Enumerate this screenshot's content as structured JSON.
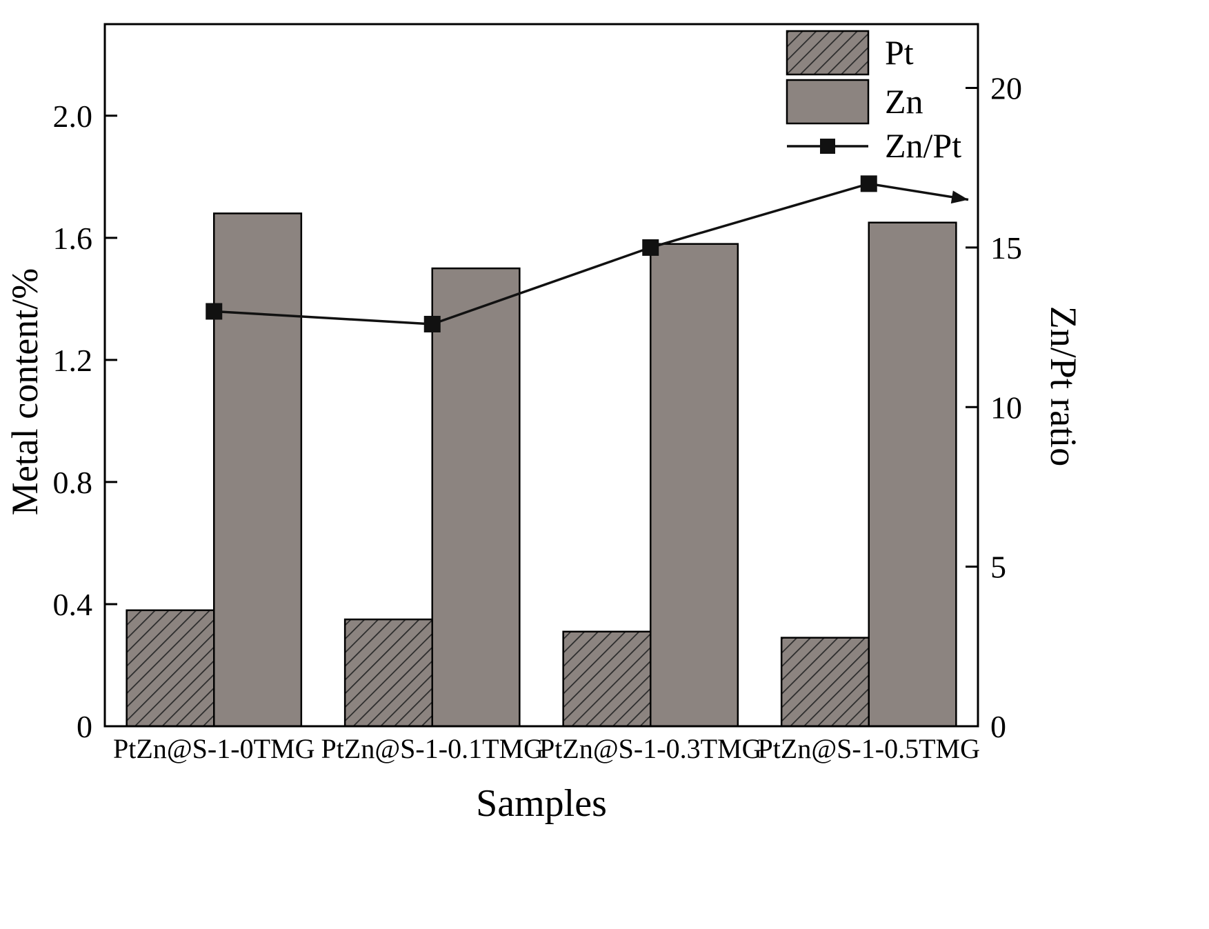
{
  "chart_data": {
    "type": "bar",
    "title": "",
    "xlabel": "Samples",
    "ylabel_left": "Metal content/%",
    "ylabel_right": "Zn/Pt ratio",
    "categories": [
      "PtZn@S-1-0TMG",
      "PtZn@S-1-0.1TMG",
      "PtZn@S-1-0.3TMG",
      "PtZn@S-1-0.5TMG"
    ],
    "bar_series": [
      {
        "name": "Pt",
        "style": "hatched",
        "axis": "left",
        "values": [
          0.38,
          0.35,
          0.31,
          0.29
        ]
      },
      {
        "name": "Zn",
        "style": "solid",
        "axis": "left",
        "values": [
          1.68,
          1.5,
          1.58,
          1.65
        ]
      }
    ],
    "line_series": {
      "name": "Zn/Pt",
      "axis": "right",
      "values": [
        13.0,
        12.6,
        15.0,
        17.0
      ],
      "arrow_end_value": 16.5
    },
    "left_axis": {
      "ticks": [
        "0",
        "0.4",
        "0.8",
        "1.2",
        "1.6",
        "2.0"
      ],
      "tick_values": [
        0,
        0.4,
        0.8,
        1.2,
        1.6,
        2.0
      ],
      "min": 0,
      "max": 2.3
    },
    "right_axis": {
      "ticks": [
        "0",
        "5",
        "10",
        "15",
        "20"
      ],
      "tick_values": [
        0,
        5,
        10,
        15,
        20
      ],
      "min": 0,
      "max": 22
    },
    "legend": [
      "Pt",
      "Zn",
      "Zn/Pt"
    ],
    "legend_position": "top-right-inside",
    "grid": "off",
    "colors": {
      "bar_fill": "#8c8480",
      "hatch": "#2b2b2b",
      "line": "#111111",
      "frame": "#000000",
      "text": "#000000",
      "background": "#ffffff"
    }
  }
}
